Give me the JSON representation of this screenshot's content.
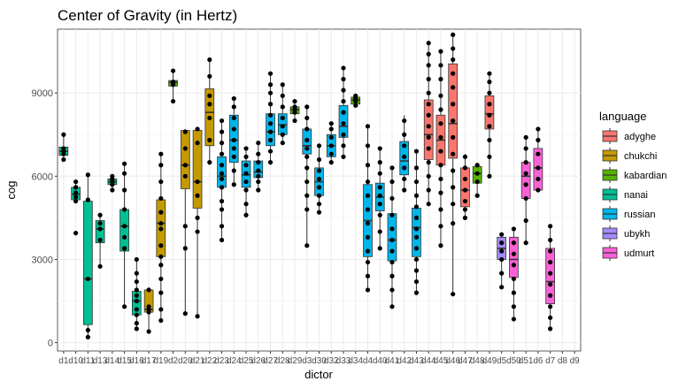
{
  "chart_data": {
    "type": "boxplot",
    "title": "Center of Gravity (in Hertz)",
    "xlabel": "dictor",
    "ylabel": "cog",
    "ylim": [
      -300,
      11300
    ],
    "yticks": [
      0,
      3000,
      6000,
      9000
    ],
    "grid": true,
    "legend_position": "right",
    "legend_title": "language",
    "legend": [
      {
        "name": "adyghe",
        "color": "#F8766D"
      },
      {
        "name": "chukchi",
        "color": "#C49A00"
      },
      {
        "name": "kabardian",
        "color": "#53B400"
      },
      {
        "name": "nanai",
        "color": "#00C094"
      },
      {
        "name": "russian",
        "color": "#00B6EB"
      },
      {
        "name": "ubykh",
        "color": "#A58AFF"
      },
      {
        "name": "udmurt",
        "color": "#FB61D7"
      }
    ],
    "categories": [
      "d1",
      "d10",
      "d11",
      "d13",
      "d14",
      "d15",
      "d16",
      "d17",
      "d19",
      "d2",
      "d20",
      "d21",
      "d22",
      "d23",
      "d24",
      "d25",
      "d26",
      "d27",
      "d28",
      "d29",
      "d3",
      "d30",
      "d32",
      "d33",
      "d34",
      "d4",
      "d40",
      "d41",
      "d42",
      "d43",
      "d44",
      "d45",
      "d46",
      "d47",
      "d48",
      "d49",
      "d5",
      "d50",
      "d51",
      "d6",
      "d7",
      "d8",
      "d9"
    ],
    "boxes": [
      {
        "dictor": "d1",
        "language": "nanai",
        "min": 6600,
        "q1": 6750,
        "median": 6900,
        "q3": 7050,
        "max": 7500,
        "points": [
          6600,
          6800,
          6900,
          7000,
          7500
        ]
      },
      {
        "dictor": "d10",
        "language": "nanai",
        "min": 5100,
        "q1": 5150,
        "median": 5350,
        "q3": 5600,
        "max": 5800,
        "points": [
          3950,
          5100,
          5250,
          5400,
          5600,
          5800
        ]
      },
      {
        "dictor": "d11",
        "language": "nanai",
        "min": 200,
        "q1": 650,
        "median": 2300,
        "q3": 5100,
        "max": 6100,
        "points": [
          200,
          450,
          2300,
          5150,
          6050
        ]
      },
      {
        "dictor": "d13",
        "language": "nanai",
        "min": 2750,
        "q1": 3600,
        "median": 4100,
        "q3": 4400,
        "max": 4650,
        "points": [
          2750,
          3700,
          4100,
          4300,
          4600
        ]
      },
      {
        "dictor": "d14",
        "language": "nanai",
        "min": 5500,
        "q1": 5700,
        "median": 5800,
        "q3": 5900,
        "max": 6000,
        "points": [
          5500,
          5700,
          5800,
          5900,
          6000
        ]
      },
      {
        "dictor": "d15",
        "language": "nanai",
        "min": 1300,
        "q1": 3300,
        "median": 4200,
        "q3": 4800,
        "max": 6450,
        "points": [
          1300,
          3400,
          3800,
          4200,
          4800,
          5500,
          6100,
          6450
        ]
      },
      {
        "dictor": "d16",
        "language": "nanai",
        "min": 500,
        "q1": 1000,
        "median": 1500,
        "q3": 1850,
        "max": 3000,
        "points": [
          500,
          700,
          1000,
          1200,
          1500,
          1700,
          1900,
          2200,
          2500,
          3000
        ]
      },
      {
        "dictor": "d17",
        "language": "chukchi",
        "min": 400,
        "q1": 1100,
        "median": 1200,
        "q3": 1900,
        "max": 2000,
        "points": [
          400,
          1100,
          1200,
          1300,
          1900
        ]
      },
      {
        "dictor": "d19",
        "language": "chukchi",
        "min": 800,
        "q1": 3100,
        "median": 4300,
        "q3": 5150,
        "max": 6800,
        "points": [
          800,
          1200,
          1800,
          2300,
          2800,
          3100,
          3500,
          4100,
          4300,
          4700,
          5200,
          5800,
          6400,
          6800
        ]
      },
      {
        "dictor": "d2",
        "language": "kabardian",
        "min": 8700,
        "q1": 9250,
        "median": 9380,
        "q3": 9450,
        "max": 9800,
        "points": [
          8700,
          9300,
          9400,
          9800
        ]
      },
      {
        "dictor": "d20",
        "language": "chukchi",
        "min": 1050,
        "q1": 5550,
        "median": 6400,
        "q3": 7650,
        "max": 7700,
        "points": [
          1050,
          3400,
          4200,
          6000,
          6400,
          7000,
          7600
        ]
      },
      {
        "dictor": "d21",
        "language": "chukchi",
        "min": 950,
        "q1": 4850,
        "median": 5800,
        "q3": 7650,
        "max": 7700,
        "points": [
          950,
          4000,
          4500,
          5300,
          5800,
          7200,
          7700
        ]
      },
      {
        "dictor": "d22",
        "language": "chukchi",
        "min": 6500,
        "q1": 7100,
        "median": 8300,
        "q3": 9150,
        "max": 10200,
        "points": [
          6500,
          7300,
          8100,
          8600,
          8900,
          9600,
          10200
        ]
      },
      {
        "dictor": "d23",
        "language": "russian",
        "min": 3700,
        "q1": 5600,
        "median": 6000,
        "q3": 6700,
        "max": 8000,
        "points": [
          3700,
          4200,
          4800,
          5100,
          5600,
          5900,
          6100,
          6400,
          6800,
          7200,
          7600,
          8000
        ]
      },
      {
        "dictor": "d24",
        "language": "russian",
        "min": 5700,
        "q1": 6500,
        "median": 7300,
        "q3": 8200,
        "max": 8800,
        "points": [
          5700,
          6200,
          6700,
          7000,
          7300,
          7700,
          8100,
          8500,
          8800
        ]
      },
      {
        "dictor": "d25",
        "language": "russian",
        "min": 4600,
        "q1": 5600,
        "median": 6050,
        "q3": 6550,
        "max": 7000,
        "points": [
          4600,
          5000,
          5500,
          5800,
          6100,
          6400,
          6700,
          7000
        ]
      },
      {
        "dictor": "d26",
        "language": "russian",
        "min": 5500,
        "q1": 5950,
        "median": 6150,
        "q3": 6550,
        "max": 7200,
        "points": [
          5500,
          5800,
          6000,
          6200,
          6500,
          6800,
          7200
        ]
      },
      {
        "dictor": "d27",
        "language": "russian",
        "min": 6500,
        "q1": 7100,
        "median": 7600,
        "q3": 8250,
        "max": 9700,
        "points": [
          6500,
          6900,
          7300,
          7600,
          7900,
          8200,
          8600,
          9000,
          9300,
          9700
        ]
      },
      {
        "dictor": "d28",
        "language": "russian",
        "min": 7200,
        "q1": 7500,
        "median": 7850,
        "q3": 8250,
        "max": 9300,
        "points": [
          7200,
          7500,
          7800,
          8100,
          8500,
          8900,
          9300
        ]
      },
      {
        "dictor": "d29",
        "language": "kabardian",
        "min": 8000,
        "q1": 8250,
        "median": 8400,
        "q3": 8500,
        "max": 8700,
        "points": [
          8000,
          8300,
          8400,
          8500,
          8700
        ]
      },
      {
        "dictor": "d3",
        "language": "russian",
        "min": 3500,
        "q1": 6800,
        "median": 7100,
        "q3": 7700,
        "max": 8500,
        "points": [
          3500,
          4800,
          5300,
          5800,
          6300,
          6700,
          7000,
          7300,
          7700,
          8100,
          8500
        ]
      },
      {
        "dictor": "d30",
        "language": "russian",
        "min": 4700,
        "q1": 5300,
        "median": 5800,
        "q3": 6300,
        "max": 7100,
        "points": [
          4700,
          5000,
          5300,
          5600,
          5900,
          6200,
          6600,
          7100
        ]
      },
      {
        "dictor": "d32",
        "language": "russian",
        "min": 6500,
        "q1": 6700,
        "median": 7100,
        "q3": 7500,
        "max": 7900,
        "points": [
          6500,
          6800,
          7100,
          7400,
          7700,
          7900
        ]
      },
      {
        "dictor": "d33",
        "language": "russian",
        "min": 6700,
        "q1": 7400,
        "median": 7800,
        "q3": 8550,
        "max": 9900,
        "points": [
          6700,
          7100,
          7500,
          7900,
          8300,
          8700,
          9100,
          9500,
          9900
        ]
      },
      {
        "dictor": "d34",
        "language": "kabardian",
        "min": 8550,
        "q1": 8600,
        "median": 8750,
        "q3": 8850,
        "max": 8900,
        "points": [
          8550,
          8700,
          8800,
          8900
        ]
      },
      {
        "dictor": "d4",
        "language": "russian",
        "min": 1900,
        "q1": 3100,
        "median": 4400,
        "q3": 5700,
        "max": 7800,
        "points": [
          1900,
          2400,
          2900,
          3300,
          3800,
          4300,
          4800,
          5300,
          5800,
          6400,
          7100,
          7800
        ]
      },
      {
        "dictor": "d40",
        "language": "russian",
        "min": 3400,
        "q1": 4750,
        "median": 5250,
        "q3": 5750,
        "max": 7000,
        "points": [
          3400,
          4000,
          4600,
          5000,
          5300,
          5600,
          6100,
          6500,
          7000
        ]
      },
      {
        "dictor": "d41",
        "language": "russian",
        "min": 1300,
        "q1": 2950,
        "median": 3700,
        "q3": 4650,
        "max": 6300,
        "points": [
          1300,
          1900,
          2400,
          2900,
          3300,
          3700,
          4100,
          4600,
          5200,
          5800,
          6300
        ]
      },
      {
        "dictor": "d42",
        "language": "russian",
        "min": 5500,
        "q1": 6050,
        "median": 6550,
        "q3": 7250,
        "max": 8200,
        "points": [
          5500,
          5900,
          6300,
          6700,
          7100,
          7500,
          8000
        ]
      },
      {
        "dictor": "d43",
        "language": "russian",
        "min": 1800,
        "q1": 3100,
        "median": 4150,
        "q3": 4850,
        "max": 6900,
        "points": [
          1800,
          2200,
          2600,
          3000,
          3400,
          3800,
          4100,
          4500,
          4900,
          5300,
          5800,
          6300,
          6900
        ]
      },
      {
        "dictor": "d44",
        "language": "adyghe",
        "min": 5000,
        "q1": 6600,
        "median": 7500,
        "q3": 8750,
        "max": 10800,
        "points": [
          5000,
          5500,
          6000,
          6500,
          7000,
          7400,
          7800,
          8200,
          8600,
          9000,
          9500,
          10000,
          10400,
          10800
        ]
      },
      {
        "dictor": "d45",
        "language": "adyghe",
        "min": 3500,
        "q1": 6400,
        "median": 7300,
        "q3": 8200,
        "max": 10500,
        "points": [
          3500,
          4200,
          4800,
          5400,
          5900,
          6400,
          6900,
          7400,
          7900,
          8400,
          8900,
          9500,
          10000,
          10500
        ]
      },
      {
        "dictor": "d46",
        "language": "adyghe",
        "min": 1750,
        "q1": 6650,
        "median": 7900,
        "q3": 10050,
        "max": 11100,
        "points": [
          1750,
          4300,
          5000,
          5600,
          6200,
          6800,
          7400,
          8000,
          8600,
          9200,
          9700,
          10200,
          10600,
          11100
        ]
      },
      {
        "dictor": "d47",
        "language": "adyghe",
        "min": 4500,
        "q1": 4900,
        "median": 5500,
        "q3": 6300,
        "max": 6800,
        "points": [
          4500,
          4800,
          5100,
          5500,
          5900,
          6300,
          6700
        ]
      },
      {
        "dictor": "d48",
        "language": "kabardian",
        "min": 5300,
        "q1": 5750,
        "median": 6100,
        "q3": 6350,
        "max": 6400,
        "points": [
          5300,
          5800,
          6100,
          6400
        ]
      },
      {
        "dictor": "d49",
        "language": "adyghe",
        "min": 6000,
        "q1": 7700,
        "median": 8250,
        "q3": 8900,
        "max": 9700,
        "points": [
          6000,
          6700,
          7300,
          7800,
          8200,
          8600,
          9000,
          9400,
          9700
        ]
      },
      {
        "dictor": "d5",
        "language": "ubykh",
        "min": 2000,
        "q1": 3000,
        "median": 3400,
        "q3": 3800,
        "max": 3900,
        "points": [
          2000,
          2500,
          3000,
          3300,
          3600,
          3900
        ]
      },
      {
        "dictor": "d50",
        "language": "udmurt",
        "min": 850,
        "q1": 2350,
        "median": 3000,
        "q3": 3800,
        "max": 4100,
        "points": [
          850,
          1300,
          1800,
          2300,
          2800,
          3200,
          3600,
          4100
        ]
      },
      {
        "dictor": "d51",
        "language": "udmurt",
        "min": 3600,
        "q1": 5200,
        "median": 6000,
        "q3": 6500,
        "max": 7400,
        "points": [
          3600,
          4400,
          5200,
          5700,
          6100,
          6500,
          7000,
          7400
        ]
      },
      {
        "dictor": "d6",
        "language": "udmurt",
        "min": 5500,
        "q1": 5500,
        "median": 6300,
        "q3": 7000,
        "max": 7700,
        "points": [
          5500,
          5900,
          6300,
          6800,
          7300,
          7700
        ]
      },
      {
        "dictor": "d7",
        "language": "udmurt",
        "min": 500,
        "q1": 1400,
        "median": 2200,
        "q3": 3400,
        "max": 4200,
        "points": [
          500,
          900,
          1300,
          1700,
          2100,
          2500,
          2900,
          3300,
          3700,
          4200
        ]
      }
    ]
  }
}
